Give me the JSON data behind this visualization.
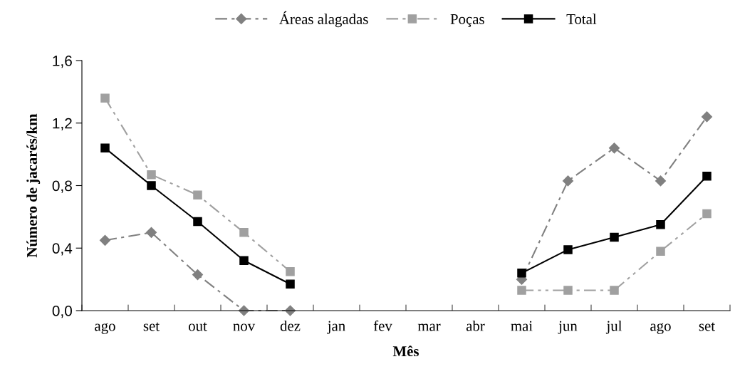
{
  "chart_data": {
    "type": "line",
    "xlabel": "Mês",
    "ylabel": "Número de jacarés/km",
    "categories": [
      "ago",
      "set",
      "out",
      "nov",
      "dez",
      "jan",
      "fev",
      "mar",
      "abr",
      "mai",
      "jun",
      "jul",
      "ago",
      "set"
    ],
    "series": [
      {
        "name": "Áreas alagadas",
        "color": "#808080",
        "marker": "diamond",
        "line_style": "dashdot",
        "values": [
          0.45,
          0.5,
          0.23,
          0,
          0,
          null,
          null,
          null,
          null,
          0.2,
          0.83,
          1.04,
          0.83,
          1.24
        ]
      },
      {
        "name": "Poças",
        "color": "#a0a0a0",
        "marker": "square",
        "line_style": "dashdotdot",
        "values": [
          1.36,
          0.87,
          0.74,
          0.5,
          0.25,
          null,
          null,
          null,
          null,
          0.13,
          0.13,
          0.13,
          0.38,
          0.62
        ]
      },
      {
        "name": "Total",
        "color": "#000000",
        "marker": "square",
        "line_style": "solid",
        "values": [
          1.04,
          0.8,
          0.57,
          0.32,
          0.17,
          null,
          null,
          null,
          null,
          0.24,
          0.39,
          0.47,
          0.55,
          0.86
        ]
      }
    ],
    "ylim": [
      0,
      1.6
    ],
    "yticks": [
      {
        "value": 0,
        "label": "0,0"
      },
      {
        "value": 0.4,
        "label": "0,4"
      },
      {
        "value": 0.8,
        "label": "0,8"
      },
      {
        "value": 1.2,
        "label": "1,2"
      },
      {
        "value": 1.6,
        "label": "1,6"
      }
    ],
    "grid": false,
    "legend": "top"
  }
}
